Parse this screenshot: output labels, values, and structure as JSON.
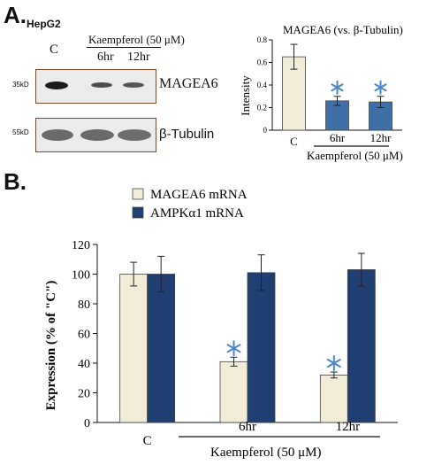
{
  "panel_a": {
    "label": "A.",
    "cell_line": "HepG2",
    "treatment": "Kaempferol (50 μM)",
    "lanes": [
      "C",
      "6hr",
      "12hr"
    ],
    "blot_top": {
      "mw": "35kD",
      "protein": "MAGEA6"
    },
    "blot_bottom": {
      "mw": "55kD",
      "protein": "β-Tubulin"
    }
  },
  "panel_b": {
    "label": "B."
  },
  "chart_data": [
    {
      "type": "bar",
      "title": "MAGEA6 (vs. β-Tubulin)",
      "ylabel": "Intensity",
      "xlabel": "Kaempferol (50 μM)",
      "categories": [
        "C",
        "6hr",
        "12hr"
      ],
      "values": [
        0.65,
        0.26,
        0.25
      ],
      "errors": [
        0.11,
        0.04,
        0.05
      ],
      "significant": [
        false,
        true,
        true
      ],
      "bar_colors": [
        "#f0ecd8",
        "#3f6fa6",
        "#3f6fa6"
      ],
      "ylim": [
        0,
        0.8
      ],
      "yticks": [
        "0",
        "0.2",
        "0.4",
        "0.6",
        "0.8"
      ],
      "grid": false
    },
    {
      "type": "bar",
      "ylabel": "Expression (% of \"C\")",
      "xlabel": "Kaempferol (50 μM)",
      "categories": [
        "C",
        "6hr",
        "12hr"
      ],
      "series": [
        {
          "name": "MAGEA6 mRNA",
          "values": [
            100,
            41,
            32
          ],
          "errors": [
            8,
            3,
            2
          ],
          "color": "#f0ecd8"
        },
        {
          "name": "AMPKα1 mRNA",
          "values": [
            100,
            101,
            103
          ],
          "errors": [
            12,
            12,
            11
          ],
          "color": "#1f3f73"
        }
      ],
      "significant_series_index": 0,
      "significant_categories": [
        false,
        true,
        true
      ],
      "ylim": [
        0,
        120
      ],
      "yticks": [
        "0",
        "20",
        "40",
        "60",
        "80",
        "100",
        "120"
      ],
      "legend_position": "top-left",
      "grid": false
    }
  ]
}
